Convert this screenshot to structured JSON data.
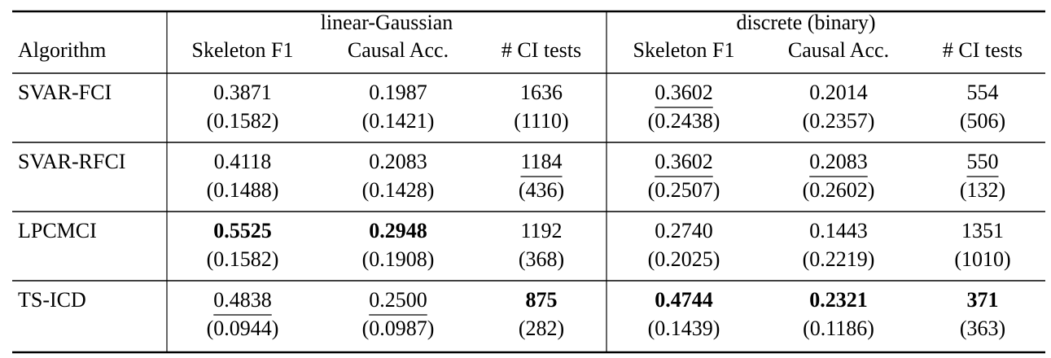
{
  "header": {
    "groups": [
      "linear-Gaussian",
      "discrete (binary)"
    ],
    "columns": [
      "Algorithm",
      "Skeleton F1",
      "Causal Acc.",
      "# CI tests",
      "Skeleton F1",
      "Causal Acc.",
      "# CI tests"
    ]
  },
  "rows": [
    {
      "algorithm": "SVAR-FCI",
      "cells": [
        {
          "value": "0.3871",
          "std": "(0.1582)"
        },
        {
          "value": "0.1987",
          "std": "(0.1421)"
        },
        {
          "value": "1636",
          "std": "(1110)"
        },
        {
          "value": "0.3602",
          "std": "(0.2438)",
          "style": "underline"
        },
        {
          "value": "0.2014",
          "std": "(0.2357)"
        },
        {
          "value": "554",
          "std": "(506)"
        }
      ]
    },
    {
      "algorithm": "SVAR-RFCI",
      "cells": [
        {
          "value": "0.4118",
          "std": "(0.1488)"
        },
        {
          "value": "0.2083",
          "std": "(0.1428)"
        },
        {
          "value": "1184",
          "std": "(436)",
          "style": "underline"
        },
        {
          "value": "0.3602",
          "std": "(0.2507)",
          "style": "underline"
        },
        {
          "value": "0.2083",
          "std": "(0.2602)",
          "style": "underline"
        },
        {
          "value": "550",
          "std": "(132)",
          "style": "underline"
        }
      ]
    },
    {
      "algorithm": "LPCMCI",
      "cells": [
        {
          "value": "0.5525",
          "std": "(0.1582)",
          "style": "bold"
        },
        {
          "value": "0.2948",
          "std": "(0.1908)",
          "style": "bold"
        },
        {
          "value": "1192",
          "std": "(368)"
        },
        {
          "value": "0.2740",
          "std": "(0.2025)"
        },
        {
          "value": "0.1443",
          "std": "(0.2219)"
        },
        {
          "value": "1351",
          "std": "(1010)"
        }
      ]
    },
    {
      "algorithm": "TS-ICD",
      "cells": [
        {
          "value": "0.4838",
          "std": "(0.0944)",
          "style": "underline"
        },
        {
          "value": "0.2500",
          "std": "(0.0987)",
          "style": "underline"
        },
        {
          "value": "875",
          "std": "(282)",
          "style": "bold"
        },
        {
          "value": "0.4744",
          "std": "(0.1439)",
          "style": "bold"
        },
        {
          "value": "0.2321",
          "std": "(0.1186)",
          "style": "bold"
        },
        {
          "value": "371",
          "std": "(363)",
          "style": "bold"
        }
      ]
    }
  ]
}
